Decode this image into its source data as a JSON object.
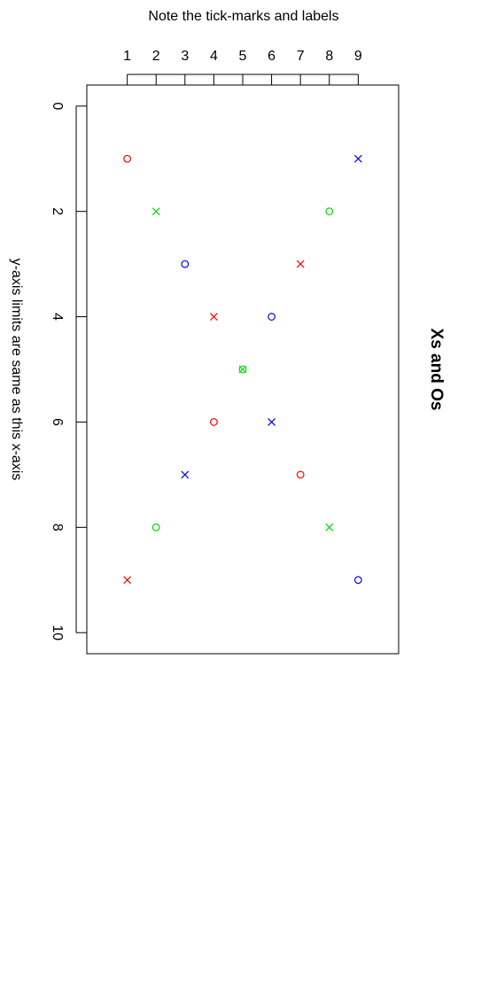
{
  "chart_data": {
    "type": "scatter",
    "title": "Xs and Os",
    "x_label": "y-axis limits are same as this x-axis",
    "y_label": "Note the tick-marks and labels",
    "xlim": [
      -0.4,
      10.4
    ],
    "xticks": [
      0,
      2,
      4,
      6,
      8,
      10
    ],
    "ylim": [
      -0.4,
      10.4
    ],
    "yticks": [
      1,
      2,
      3,
      4,
      5,
      6,
      7,
      8,
      9
    ],
    "series": [
      {
        "color": "#ff0000",
        "marker": "o",
        "x": [
          1,
          6,
          7
        ],
        "values": [
          1,
          4,
          7
        ]
      },
      {
        "color": "#ff0000",
        "marker": "x",
        "x": [
          3,
          4,
          9
        ],
        "values": [
          7,
          4,
          1
        ]
      },
      {
        "color": "#00dd00",
        "marker": "o",
        "x": [
          2,
          5,
          8
        ],
        "values": [
          8,
          5,
          2
        ]
      },
      {
        "color": "#00dd00",
        "marker": "x",
        "x": [
          2,
          5,
          8
        ],
        "values": [
          2,
          5,
          8
        ]
      },
      {
        "color": "#0000ff",
        "marker": "o",
        "x": [
          3,
          4,
          9
        ],
        "values": [
          3,
          6,
          9
        ]
      },
      {
        "color": "#0000ff",
        "marker": "x",
        "x": [
          1,
          6,
          7
        ],
        "values": [
          9,
          6,
          3
        ]
      }
    ]
  }
}
